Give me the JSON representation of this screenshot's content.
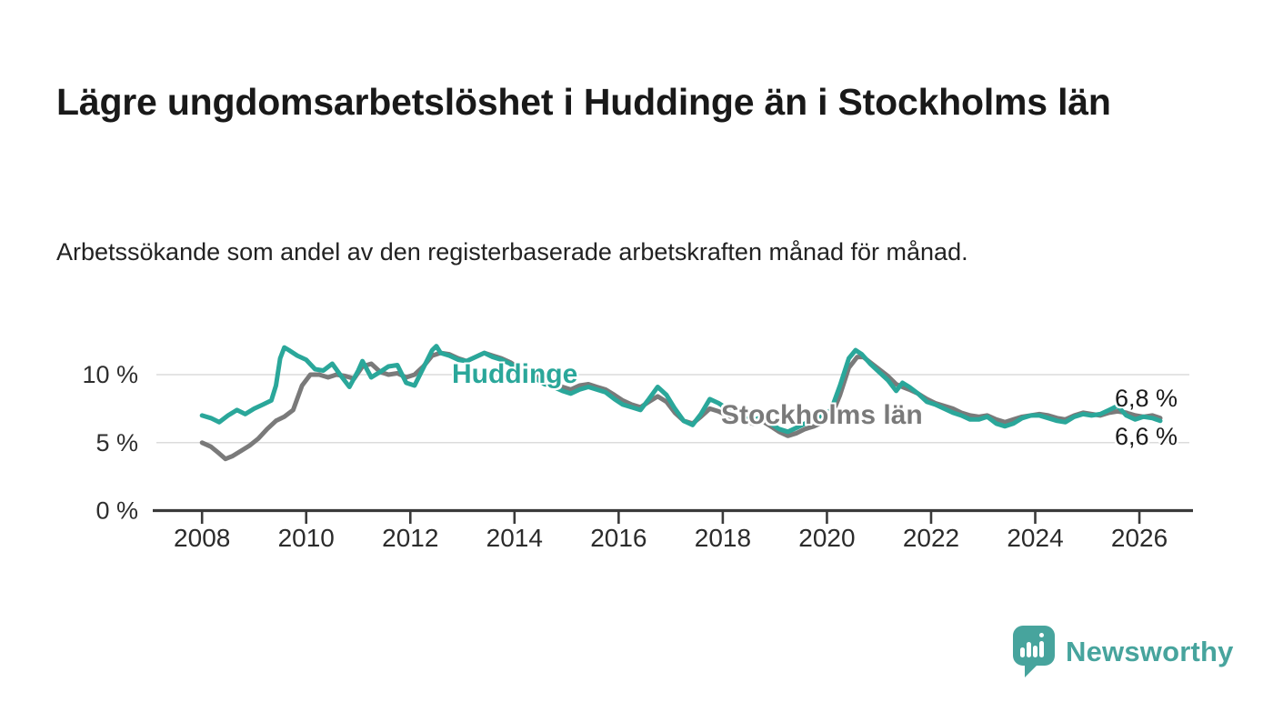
{
  "header": {
    "title": "Lägre ungdomsarbetslöshet i Huddinge än i Stockholms län",
    "subtitle": "Arbetssökande som andel av den registerbaserade arbetskraften månad för månad."
  },
  "colors": {
    "huddinge_teal": "#2aa79a",
    "stockholm_gray": "#7a7a7a",
    "grid": "#dcdcdc",
    "axis": "#3a3a3a",
    "text": "#222222",
    "brand_teal": "#47a49d"
  },
  "annotations": {
    "huddinge_label": "Huddinge",
    "stockholm_label": "Stockholms län",
    "end_value_top": "6,8 %",
    "end_value_bottom": "6,6 %"
  },
  "brand": {
    "name": "Newsworthy"
  },
  "chart_data": {
    "type": "line",
    "title": "Lägre ungdomsarbetslöshet i Huddinge än i Stockholms län",
    "xlabel": "",
    "ylabel": "Arbetssökande som andel av den registerbaserade arbetskraften",
    "x_range": [
      2007.1,
      2027.0
    ],
    "ylim": [
      0,
      12.8
    ],
    "grid": "horizontal",
    "legend_position": "inline-labels",
    "x_ticks": [
      {
        "value": 2008,
        "label": "2008"
      },
      {
        "value": 2010,
        "label": "2010"
      },
      {
        "value": 2012,
        "label": "2012"
      },
      {
        "value": 2014,
        "label": "2014"
      },
      {
        "value": 2016,
        "label": "2016"
      },
      {
        "value": 2018,
        "label": "2018"
      },
      {
        "value": 2020,
        "label": "2020"
      },
      {
        "value": 2022,
        "label": "2022"
      },
      {
        "value": 2024,
        "label": "2024"
      },
      {
        "value": 2026,
        "label": "2026"
      }
    ],
    "y_ticks": [
      {
        "value": 0,
        "label": "0 %"
      },
      {
        "value": 5,
        "label": "5 %"
      },
      {
        "value": 10,
        "label": "10 %"
      }
    ],
    "series": [
      {
        "name": "Stockholms län",
        "color": "#7a7a7a",
        "last_value_label": "6,8 %",
        "points": [
          [
            2008.0,
            5.0
          ],
          [
            2008.17,
            4.7
          ],
          [
            2008.33,
            4.2
          ],
          [
            2008.45,
            3.8
          ],
          [
            2008.58,
            4.0
          ],
          [
            2008.75,
            4.4
          ],
          [
            2008.92,
            4.8
          ],
          [
            2009.08,
            5.3
          ],
          [
            2009.25,
            6.0
          ],
          [
            2009.42,
            6.6
          ],
          [
            2009.58,
            6.9
          ],
          [
            2009.75,
            7.4
          ],
          [
            2009.92,
            9.2
          ],
          [
            2010.08,
            10.0
          ],
          [
            2010.25,
            10.0
          ],
          [
            2010.42,
            9.8
          ],
          [
            2010.58,
            10.0
          ],
          [
            2010.75,
            9.9
          ],
          [
            2010.92,
            9.7
          ],
          [
            2011.08,
            10.6
          ],
          [
            2011.25,
            10.8
          ],
          [
            2011.42,
            10.2
          ],
          [
            2011.58,
            10.0
          ],
          [
            2011.75,
            10.1
          ],
          [
            2011.92,
            9.8
          ],
          [
            2012.08,
            10.0
          ],
          [
            2012.25,
            10.6
          ],
          [
            2012.42,
            11.4
          ],
          [
            2012.58,
            11.6
          ],
          [
            2012.75,
            11.5
          ],
          [
            2012.92,
            11.2
          ],
          [
            2013.08,
            11.0
          ],
          [
            2013.25,
            11.3
          ],
          [
            2013.42,
            11.6
          ],
          [
            2013.58,
            11.4
          ],
          [
            2013.75,
            11.2
          ],
          [
            2013.92,
            10.9
          ],
          [
            2014.08,
            10.5
          ],
          [
            2014.25,
            10.2
          ],
          [
            2014.42,
            9.9
          ],
          [
            2014.58,
            9.6
          ],
          [
            2014.75,
            9.4
          ],
          [
            2014.92,
            9.1
          ],
          [
            2015.08,
            8.9
          ],
          [
            2015.25,
            9.2
          ],
          [
            2015.42,
            9.3
          ],
          [
            2015.58,
            9.1
          ],
          [
            2015.75,
            8.9
          ],
          [
            2015.92,
            8.5
          ],
          [
            2016.08,
            8.1
          ],
          [
            2016.25,
            7.8
          ],
          [
            2016.42,
            7.6
          ],
          [
            2016.58,
            8.0
          ],
          [
            2016.75,
            8.4
          ],
          [
            2016.92,
            8.0
          ],
          [
            2017.08,
            7.2
          ],
          [
            2017.25,
            6.6
          ],
          [
            2017.42,
            6.4
          ],
          [
            2017.58,
            6.9
          ],
          [
            2017.75,
            7.5
          ],
          [
            2017.92,
            7.3
          ],
          [
            2018.08,
            7.0
          ],
          [
            2018.25,
            6.8
          ],
          [
            2018.42,
            6.6
          ],
          [
            2018.58,
            6.4
          ],
          [
            2018.75,
            6.6
          ],
          [
            2018.92,
            6.2
          ],
          [
            2019.08,
            5.8
          ],
          [
            2019.25,
            5.5
          ],
          [
            2019.42,
            5.7
          ],
          [
            2019.58,
            6.0
          ],
          [
            2019.75,
            6.2
          ],
          [
            2019.92,
            6.5
          ],
          [
            2020.08,
            6.9
          ],
          [
            2020.25,
            8.5
          ],
          [
            2020.42,
            10.5
          ],
          [
            2020.58,
            11.3
          ],
          [
            2020.7,
            11.3
          ],
          [
            2020.83,
            10.9
          ],
          [
            2021.0,
            10.4
          ],
          [
            2021.17,
            9.9
          ],
          [
            2021.33,
            9.3
          ],
          [
            2021.45,
            9.1
          ],
          [
            2021.58,
            8.9
          ],
          [
            2021.75,
            8.6
          ],
          [
            2021.92,
            8.2
          ],
          [
            2022.08,
            7.9
          ],
          [
            2022.25,
            7.7
          ],
          [
            2022.42,
            7.5
          ],
          [
            2022.58,
            7.2
          ],
          [
            2022.75,
            7.0
          ],
          [
            2022.92,
            6.9
          ],
          [
            2023.08,
            7.0
          ],
          [
            2023.25,
            6.7
          ],
          [
            2023.42,
            6.5
          ],
          [
            2023.58,
            6.7
          ],
          [
            2023.75,
            6.9
          ],
          [
            2023.92,
            7.0
          ],
          [
            2024.08,
            7.1
          ],
          [
            2024.25,
            7.0
          ],
          [
            2024.42,
            6.8
          ],
          [
            2024.58,
            6.7
          ],
          [
            2024.75,
            7.0
          ],
          [
            2024.92,
            7.2
          ],
          [
            2025.08,
            7.1
          ],
          [
            2025.25,
            7.0
          ],
          [
            2025.42,
            7.2
          ],
          [
            2025.58,
            7.3
          ],
          [
            2025.75,
            7.2
          ],
          [
            2025.92,
            7.0
          ],
          [
            2026.08,
            6.9
          ],
          [
            2026.25,
            7.0
          ],
          [
            2026.4,
            6.8
          ]
        ]
      },
      {
        "name": "Huddinge",
        "color": "#2aa79a",
        "last_value_label": "6,6 %",
        "points": [
          [
            2008.0,
            7.0
          ],
          [
            2008.17,
            6.8
          ],
          [
            2008.33,
            6.5
          ],
          [
            2008.5,
            7.0
          ],
          [
            2008.67,
            7.4
          ],
          [
            2008.83,
            7.1
          ],
          [
            2009.0,
            7.5
          ],
          [
            2009.17,
            7.8
          ],
          [
            2009.33,
            8.1
          ],
          [
            2009.42,
            9.2
          ],
          [
            2009.5,
            11.2
          ],
          [
            2009.58,
            12.0
          ],
          [
            2009.67,
            11.8
          ],
          [
            2009.83,
            11.4
          ],
          [
            2010.0,
            11.1
          ],
          [
            2010.17,
            10.4
          ],
          [
            2010.33,
            10.3
          ],
          [
            2010.5,
            10.8
          ],
          [
            2010.67,
            9.9
          ],
          [
            2010.83,
            9.1
          ],
          [
            2011.0,
            10.3
          ],
          [
            2011.08,
            11.0
          ],
          [
            2011.25,
            9.8
          ],
          [
            2011.42,
            10.2
          ],
          [
            2011.58,
            10.6
          ],
          [
            2011.75,
            10.7
          ],
          [
            2011.92,
            9.4
          ],
          [
            2012.08,
            9.2
          ],
          [
            2012.25,
            10.5
          ],
          [
            2012.42,
            11.8
          ],
          [
            2012.5,
            12.1
          ],
          [
            2012.58,
            11.6
          ],
          [
            2012.75,
            11.4
          ],
          [
            2012.92,
            11.1
          ],
          [
            2013.08,
            11.0
          ],
          [
            2013.25,
            11.3
          ],
          [
            2013.42,
            11.6
          ],
          [
            2013.58,
            11.3
          ],
          [
            2013.75,
            11.1
          ],
          [
            2013.92,
            10.8
          ],
          [
            2014.08,
            10.3
          ],
          [
            2014.25,
            10.0
          ],
          [
            2014.42,
            9.7
          ],
          [
            2014.58,
            9.3
          ],
          [
            2014.75,
            9.1
          ],
          [
            2014.92,
            8.8
          ],
          [
            2015.08,
            8.6
          ],
          [
            2015.25,
            8.9
          ],
          [
            2015.42,
            9.1
          ],
          [
            2015.58,
            8.9
          ],
          [
            2015.75,
            8.7
          ],
          [
            2015.92,
            8.2
          ],
          [
            2016.08,
            7.8
          ],
          [
            2016.25,
            7.6
          ],
          [
            2016.42,
            7.4
          ],
          [
            2016.58,
            8.2
          ],
          [
            2016.75,
            9.1
          ],
          [
            2016.92,
            8.5
          ],
          [
            2017.08,
            7.5
          ],
          [
            2017.25,
            6.6
          ],
          [
            2017.42,
            6.3
          ],
          [
            2017.58,
            7.1
          ],
          [
            2017.75,
            8.2
          ],
          [
            2017.92,
            7.9
          ],
          [
            2018.08,
            7.5
          ],
          [
            2018.25,
            7.1
          ],
          [
            2018.42,
            6.8
          ],
          [
            2018.58,
            6.6
          ],
          [
            2018.75,
            6.9
          ],
          [
            2018.92,
            6.4
          ],
          [
            2019.08,
            6.0
          ],
          [
            2019.25,
            5.8
          ],
          [
            2019.42,
            6.1
          ],
          [
            2019.58,
            6.4
          ],
          [
            2019.75,
            6.7
          ],
          [
            2019.92,
            7.0
          ],
          [
            2020.08,
            7.4
          ],
          [
            2020.25,
            9.2
          ],
          [
            2020.42,
            11.2
          ],
          [
            2020.55,
            11.8
          ],
          [
            2020.67,
            11.5
          ],
          [
            2020.83,
            10.8
          ],
          [
            2021.0,
            10.2
          ],
          [
            2021.17,
            9.6
          ],
          [
            2021.33,
            8.8
          ],
          [
            2021.45,
            9.4
          ],
          [
            2021.58,
            9.1
          ],
          [
            2021.75,
            8.6
          ],
          [
            2021.92,
            8.0
          ],
          [
            2022.08,
            7.8
          ],
          [
            2022.25,
            7.5
          ],
          [
            2022.42,
            7.2
          ],
          [
            2022.58,
            7.0
          ],
          [
            2022.75,
            6.7
          ],
          [
            2022.92,
            6.7
          ],
          [
            2023.08,
            6.9
          ],
          [
            2023.25,
            6.4
          ],
          [
            2023.42,
            6.2
          ],
          [
            2023.58,
            6.4
          ],
          [
            2023.75,
            6.8
          ],
          [
            2023.92,
            7.0
          ],
          [
            2024.08,
            7.0
          ],
          [
            2024.25,
            6.8
          ],
          [
            2024.42,
            6.6
          ],
          [
            2024.58,
            6.5
          ],
          [
            2024.75,
            6.9
          ],
          [
            2024.92,
            7.1
          ],
          [
            2025.08,
            7.0
          ],
          [
            2025.25,
            7.1
          ],
          [
            2025.42,
            7.4
          ],
          [
            2025.58,
            7.7
          ],
          [
            2025.75,
            7.0
          ],
          [
            2025.92,
            6.7
          ],
          [
            2026.08,
            6.9
          ],
          [
            2026.25,
            6.8
          ],
          [
            2026.4,
            6.6
          ]
        ]
      }
    ]
  }
}
